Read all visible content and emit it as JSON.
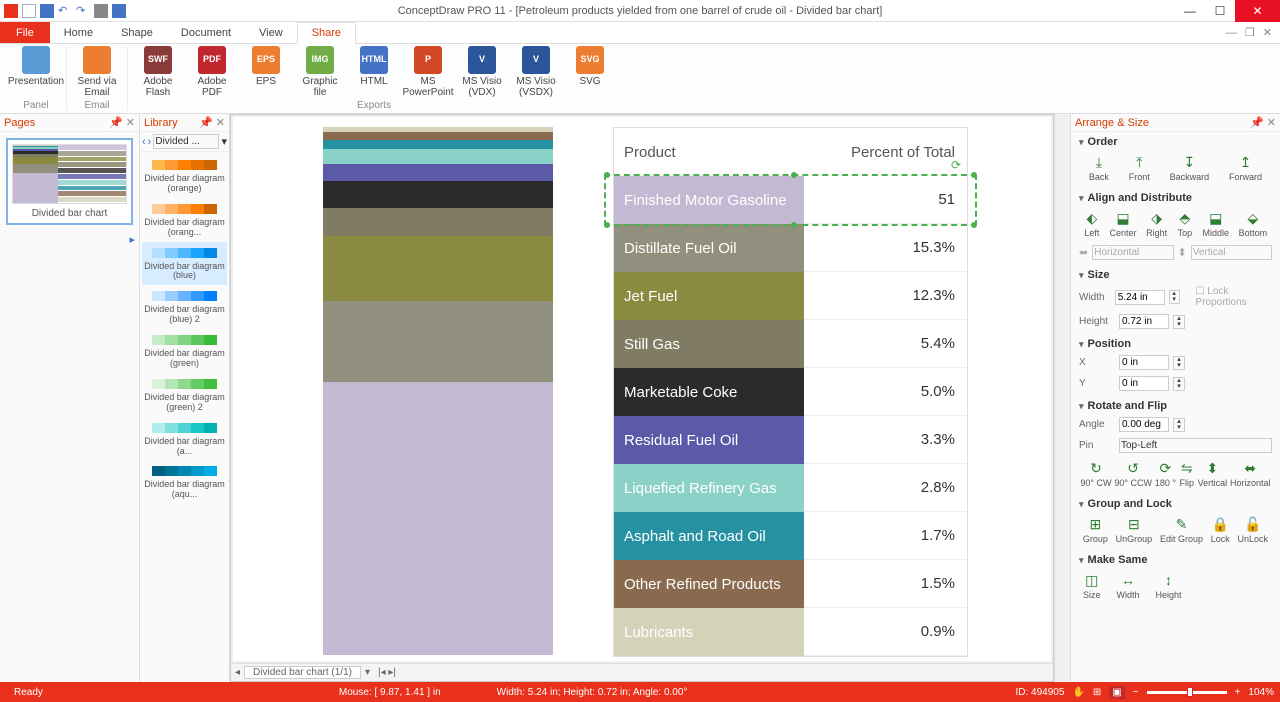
{
  "app": {
    "title": "ConceptDraw PRO 11 - [Petroleum products yielded from one barrel of crude oil - Divided bar chart]"
  },
  "menu": {
    "file": "File",
    "items": [
      "Home",
      "Shape",
      "Document",
      "View",
      "Share"
    ],
    "active": "Share"
  },
  "ribbon": {
    "groups": [
      {
        "label": "Panel",
        "buttons": [
          {
            "label": "Presentation",
            "color": "#5b9bd5"
          }
        ]
      },
      {
        "label": "Email",
        "buttons": [
          {
            "label": "Send via Email",
            "color": "#ed7d31"
          }
        ]
      },
      {
        "label": "Exports",
        "buttons": [
          {
            "label": "Adobe Flash",
            "color": "#8b3a3a",
            "txt": "SWF"
          },
          {
            "label": "Adobe PDF",
            "color": "#c1272d",
            "txt": "PDF"
          },
          {
            "label": "EPS",
            "color": "#ed7d31",
            "txt": "EPS"
          },
          {
            "label": "Graphic file",
            "color": "#70ad47",
            "txt": "IMG"
          },
          {
            "label": "HTML",
            "color": "#4472c4",
            "txt": "HTML"
          },
          {
            "label": "MS PowerPoint",
            "color": "#d24726",
            "txt": "P"
          },
          {
            "label": "MS Visio (VDX)",
            "color": "#2b579a",
            "txt": "V"
          },
          {
            "label": "MS Visio (VSDX)",
            "color": "#2b579a",
            "txt": "V"
          },
          {
            "label": "SVG",
            "color": "#ed7d31",
            "txt": "SVG"
          }
        ]
      }
    ]
  },
  "pages_panel": {
    "title": "Pages",
    "thumb_label": "Divided bar chart"
  },
  "library": {
    "title": "Library",
    "selector": "Divided ...",
    "items": [
      {
        "name": "Divided bar diagram (orange)",
        "colors": [
          "#ffb84d",
          "#ff9933",
          "#ff8000",
          "#e67300",
          "#cc6600"
        ]
      },
      {
        "name": "Divided bar diagram (orang...",
        "colors": [
          "#ffcc99",
          "#ffb366",
          "#ff9933",
          "#ff8000",
          "#cc6600"
        ]
      },
      {
        "name": "Divided bar diagram (blue)",
        "colors": [
          "#b3e0ff",
          "#80ccff",
          "#4db8ff",
          "#1aa3ff",
          "#0088e6"
        ],
        "selected": true
      },
      {
        "name": "Divided bar diagram (blue) 2",
        "colors": [
          "#cce6ff",
          "#99ccff",
          "#66b3ff",
          "#3399ff",
          "#0080ff"
        ]
      },
      {
        "name": "Divided bar diagram (green)",
        "colors": [
          "#c6ecc6",
          "#a3e0a3",
          "#80d480",
          "#5cc75c",
          "#39bb39"
        ]
      },
      {
        "name": "Divided bar diagram (green) 2",
        "colors": [
          "#d9f2d9",
          "#b3e6b3",
          "#8cd98c",
          "#66cc66",
          "#40bf40"
        ]
      },
      {
        "name": "Divided bar diagram (a...",
        "colors": [
          "#b3ecec",
          "#80e0e0",
          "#4dd3d3",
          "#1ac6c6",
          "#00b3b3"
        ]
      },
      {
        "name": "Divided bar diagram (aqu...",
        "colors": [
          "#006080",
          "#007399",
          "#0086b3",
          "#0099cc",
          "#00ace6"
        ]
      }
    ]
  },
  "chart": {
    "type": "divided-bar",
    "header_product": "Product",
    "header_percent": "Percent of Total",
    "selected_row_index": 0,
    "selected_edit_value": "51",
    "rows": [
      {
        "product": "Finished Motor Gasoline",
        "percent": "51.4%",
        "value": 51.4,
        "color": "#c4b9d3"
      },
      {
        "product": "Distillate Fuel Oil",
        "percent": "15.3%",
        "value": 15.3,
        "color": "#91907e"
      },
      {
        "product": "Jet Fuel",
        "percent": "12.3%",
        "value": 12.3,
        "color": "#8a8b40"
      },
      {
        "product": "Still Gas",
        "percent": "5.4%",
        "value": 5.4,
        "color": "#807c63"
      },
      {
        "product": "Marketable Coke",
        "percent": "5.0%",
        "value": 5.0,
        "color": "#2b2b2b"
      },
      {
        "product": "Residual Fuel Oil",
        "percent": "3.3%",
        "value": 3.3,
        "color": "#5a5aa8"
      },
      {
        "product": "Liquefied Refinery Gas",
        "percent": "2.8%",
        "value": 2.8,
        "color": "#8ad1c7"
      },
      {
        "product": "Asphalt and Road Oil",
        "percent": "1.7%",
        "value": 1.7,
        "color": "#2691a3"
      },
      {
        "product": "Other Refined Products",
        "percent": "1.5%",
        "value": 1.5,
        "color": "#8a6a4f"
      },
      {
        "product": "Lubricants",
        "percent": "0.9%",
        "value": 0.9,
        "color": "#d4d2b8"
      }
    ],
    "bar_total_height": 530
  },
  "canvas_tabs": {
    "tab": "Divided bar chart (1/1)"
  },
  "arrange": {
    "title": "Arrange & Size",
    "order": {
      "title": "Order",
      "buttons": [
        "Back",
        "Front",
        "Backward",
        "Forward"
      ]
    },
    "align": {
      "title": "Align and Distribute",
      "buttons": [
        "Left",
        "Center",
        "Right",
        "Top",
        "Middle",
        "Bottom"
      ],
      "h": "Horizontal",
      "v": "Vertical"
    },
    "size": {
      "title": "Size",
      "width_label": "Width",
      "width": "5.24 in",
      "height_label": "Height",
      "height": "0.72 in",
      "lock": "Lock Proportions"
    },
    "position": {
      "title": "Position",
      "x_label": "X",
      "x": "0 in",
      "y_label": "Y",
      "y": "0 in"
    },
    "rotate": {
      "title": "Rotate and Flip",
      "angle_label": "Angle",
      "angle": "0.00 deg",
      "pin_label": "Pin",
      "pin": "Top-Left",
      "buttons": [
        "90° CW",
        "90° CCW",
        "180 °",
        "Flip",
        "Vertical",
        "Horizontal"
      ]
    },
    "group": {
      "title": "Group and Lock",
      "buttons": [
        "Group",
        "UnGroup",
        "Edit Group",
        "Lock",
        "UnLock"
      ]
    },
    "makesame": {
      "title": "Make Same",
      "buttons": [
        "Size",
        "Width",
        "Height"
      ]
    }
  },
  "status": {
    "ready": "Ready",
    "mouse": "Mouse: [ 9.87, 1.41 ] in",
    "dims": "Width: 5.24 in;  Height: 0.72 in;  Angle: 0.00°",
    "id": "ID: 494905",
    "zoom": "104%"
  }
}
